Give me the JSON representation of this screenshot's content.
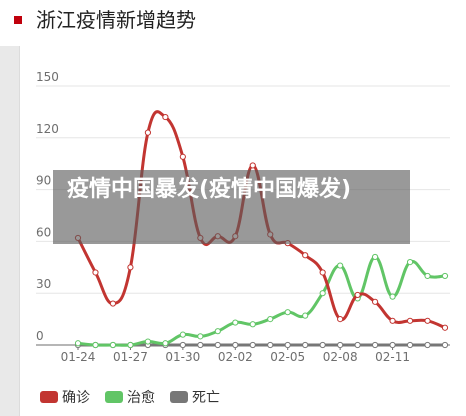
{
  "header": {
    "title": "浙江疫情新增趋势"
  },
  "overlay": {
    "text": "疫情中国暴发(疫情中国爆发)"
  },
  "colors": {
    "confirmed": "#c23531",
    "cured": "#61c566",
    "death": "#777777",
    "accent": "#c0000c"
  },
  "chart_data": {
    "type": "line",
    "y_ticks": [
      "150",
      "120",
      "90",
      "60",
      "30",
      "0"
    ],
    "ylim": [
      0,
      150
    ],
    "x_ticks": [
      {
        "label": "01-24",
        "index": 0
      },
      {
        "label": "01-27",
        "index": 3
      },
      {
        "label": "01-30",
        "index": 6
      },
      {
        "label": "02-02",
        "index": 9
      },
      {
        "label": "02-05",
        "index": 12
      },
      {
        "label": "02-08",
        "index": 15
      },
      {
        "label": "02-11",
        "index": 18
      }
    ],
    "x_count": 22,
    "series": [
      {
        "name": "确诊",
        "color": "#c23531",
        "values": [
          62,
          42,
          24,
          45,
          123,
          132,
          109,
          62,
          63,
          63,
          104,
          64,
          59,
          52,
          42,
          15,
          29,
          25,
          14,
          14,
          14,
          10
        ]
      },
      {
        "name": "治愈",
        "color": "#61c566",
        "values": [
          1,
          0,
          0,
          0,
          2,
          1,
          6,
          5,
          8,
          13,
          12,
          15,
          19,
          17,
          30,
          46,
          27,
          51,
          28,
          48,
          40,
          40
        ]
      },
      {
        "name": "死亡",
        "color": "#777777",
        "values": [
          0,
          0,
          0,
          0,
          0,
          0,
          0,
          0,
          0,
          0,
          0,
          0,
          0,
          0,
          0,
          0,
          0,
          0,
          0,
          0,
          0,
          0
        ]
      }
    ]
  }
}
